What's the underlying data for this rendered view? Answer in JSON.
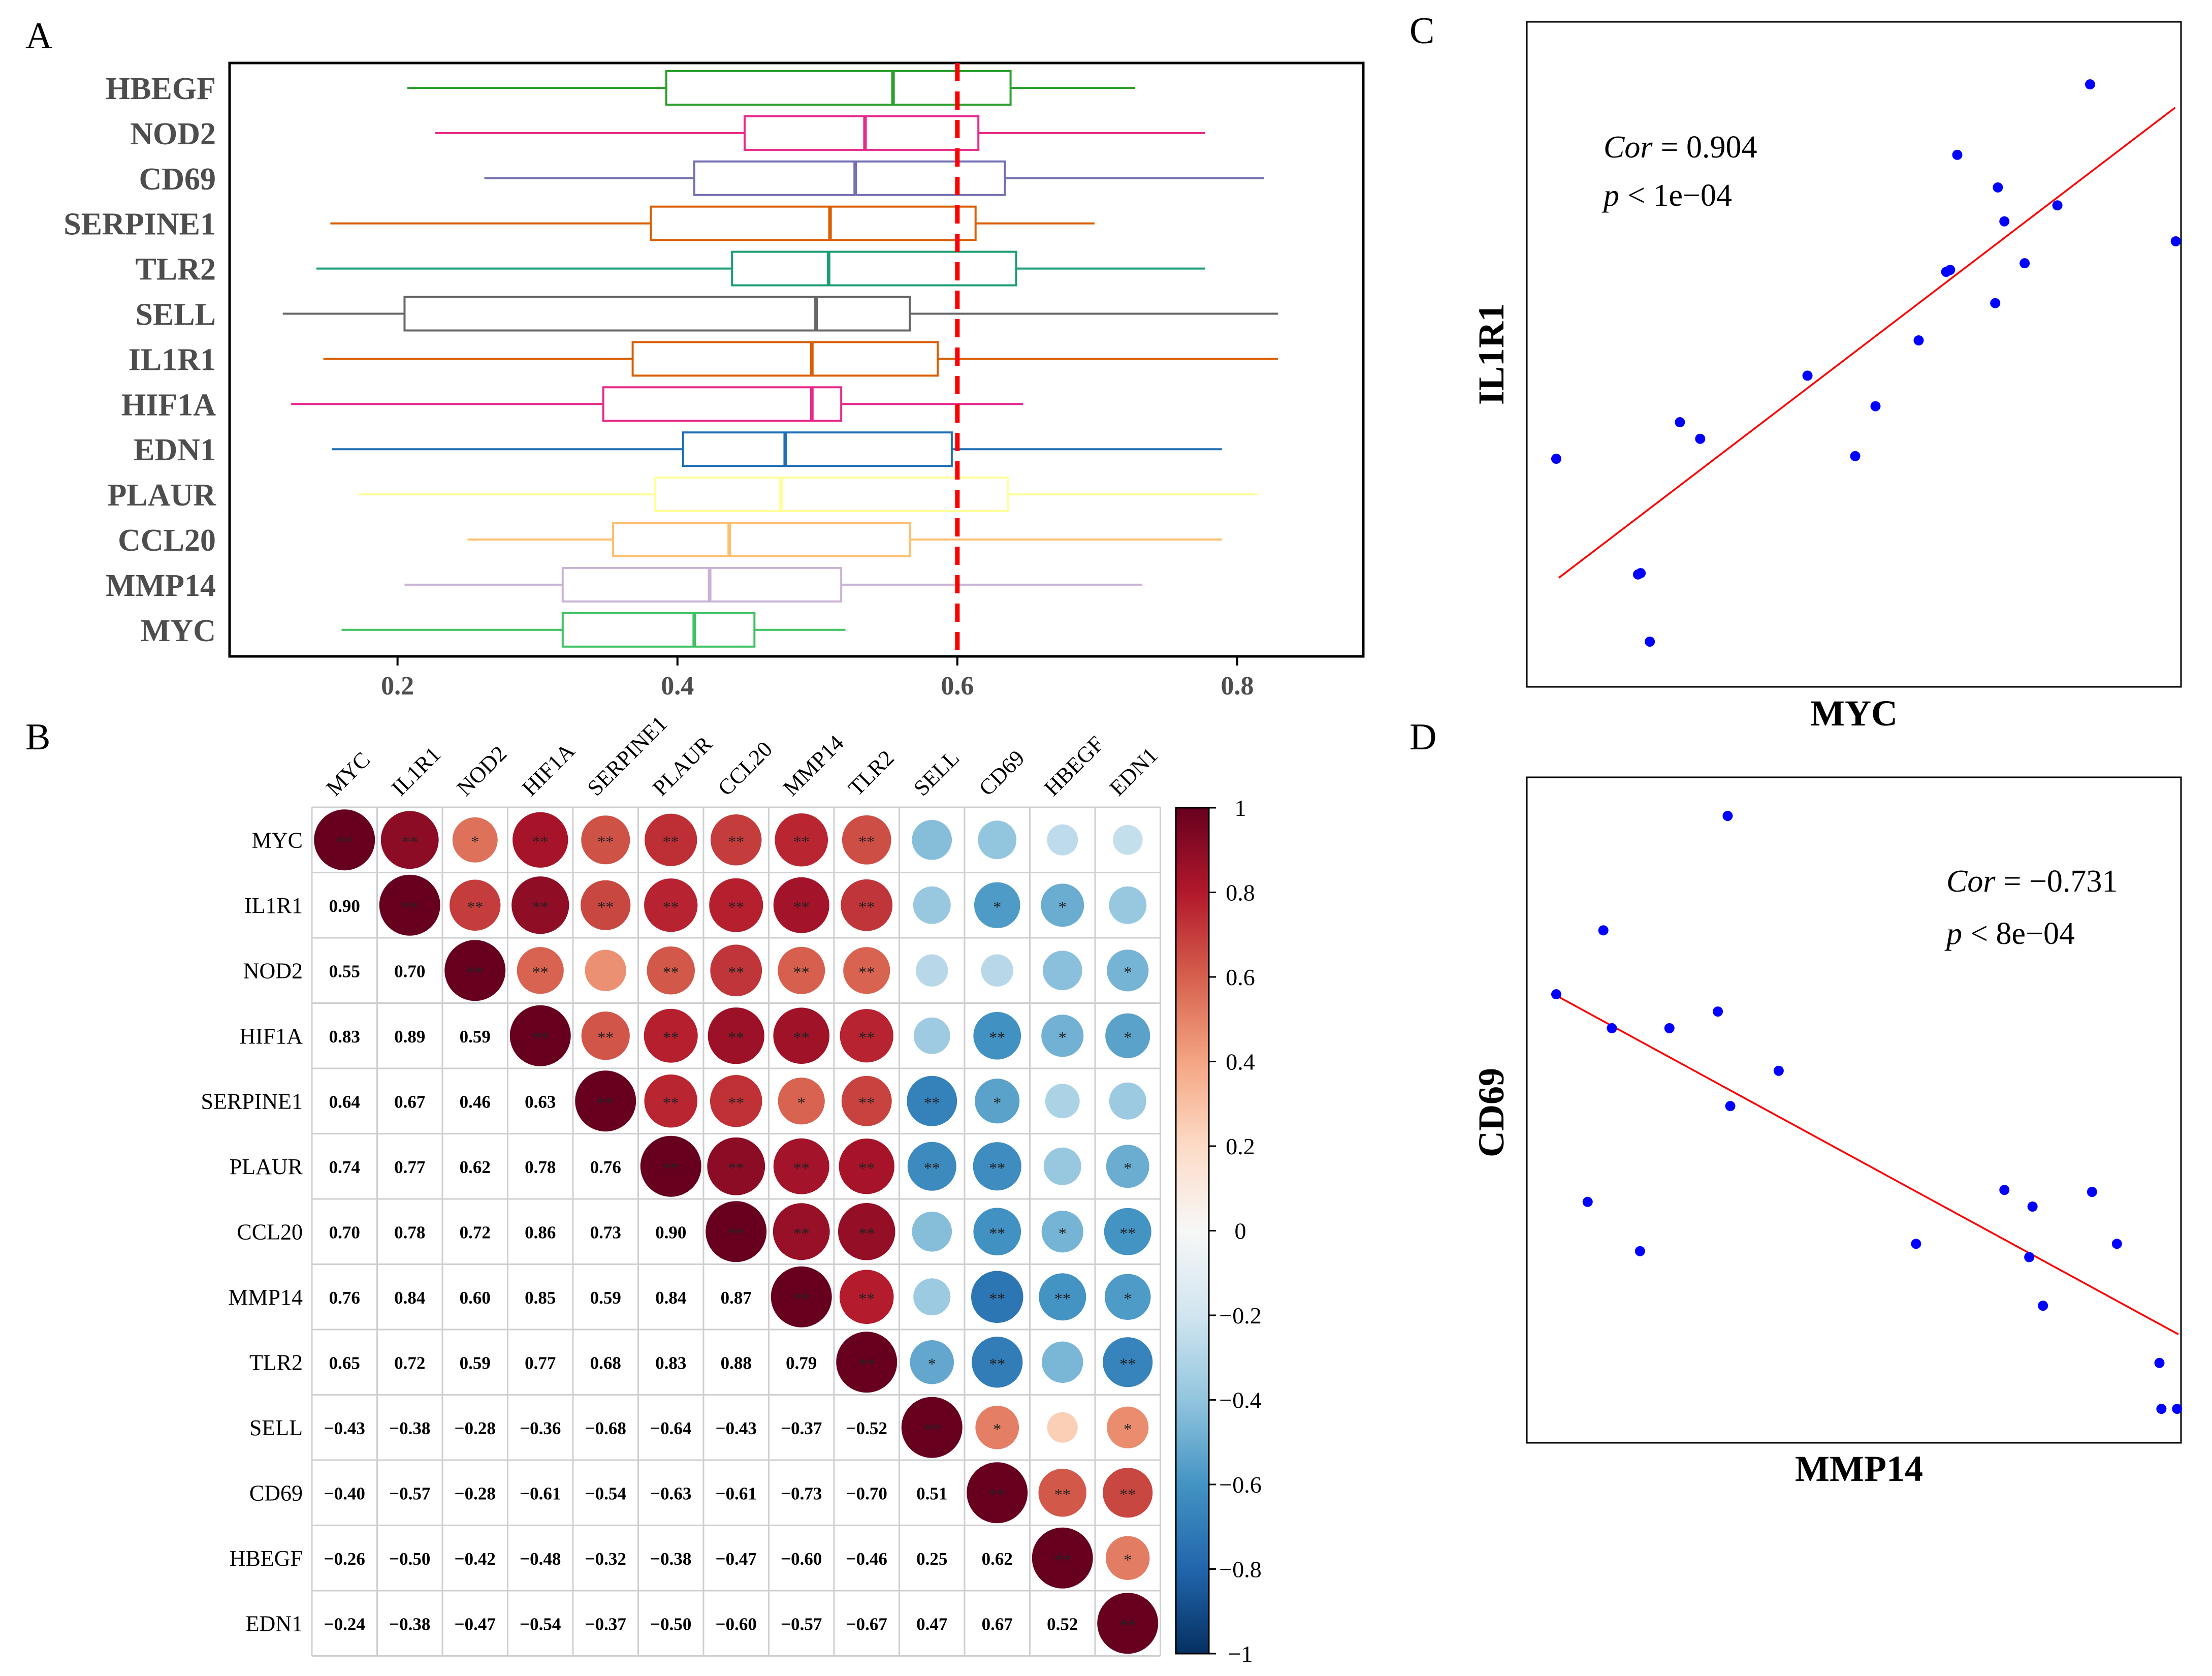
{
  "panels": {
    "A": {
      "letter": "A",
      "chart_data": {
        "type": "boxplot",
        "orientation": "horizontal",
        "categories": [
          "HBEGF",
          "NOD2",
          "CD69",
          "SERPINE1",
          "TLR2",
          "SELL",
          "IL1R1",
          "HIF1A",
          "EDN1",
          "PLAUR",
          "CCL20",
          "MMP14",
          "MYC"
        ],
        "colors": [
          "#2ca02c",
          "#e7298a",
          "#7570b3",
          "#d95f02",
          "#1b9e77",
          "#666666",
          "#d95f02",
          "#e7298a",
          "#1f6fb4",
          "#ffff99",
          "#fdbf6f",
          "#cab2d6",
          "#41c262"
        ],
        "boxes": [
          {
            "whislo": 0.207,
            "q1": 0.392,
            "med": 0.554,
            "q3": 0.638,
            "whishi": 0.727
          },
          {
            "whislo": 0.227,
            "q1": 0.448,
            "med": 0.534,
            "q3": 0.615,
            "whishi": 0.777
          },
          {
            "whislo": 0.262,
            "q1": 0.412,
            "med": 0.527,
            "q3": 0.634,
            "whishi": 0.819
          },
          {
            "whislo": 0.152,
            "q1": 0.381,
            "med": 0.509,
            "q3": 0.613,
            "whishi": 0.698
          },
          {
            "whislo": 0.142,
            "q1": 0.439,
            "med": 0.508,
            "q3": 0.642,
            "whishi": 0.777
          },
          {
            "whislo": 0.118,
            "q1": 0.205,
            "med": 0.499,
            "q3": 0.566,
            "whishi": 0.829
          },
          {
            "whislo": 0.147,
            "q1": 0.368,
            "med": 0.496,
            "q3": 0.586,
            "whishi": 0.829
          },
          {
            "whislo": 0.124,
            "q1": 0.347,
            "med": 0.496,
            "q3": 0.517,
            "whishi": 0.647
          },
          {
            "whislo": 0.153,
            "q1": 0.404,
            "med": 0.477,
            "q3": 0.596,
            "whishi": 0.789
          },
          {
            "whislo": 0.172,
            "q1": 0.384,
            "med": 0.474,
            "q3": 0.636,
            "whishi": 0.814
          },
          {
            "whislo": 0.25,
            "q1": 0.354,
            "med": 0.437,
            "q3": 0.566,
            "whishi": 0.789
          },
          {
            "whislo": 0.205,
            "q1": 0.318,
            "med": 0.423,
            "q3": 0.517,
            "whishi": 0.732
          },
          {
            "whislo": 0.16,
            "q1": 0.318,
            "med": 0.412,
            "q3": 0.455,
            "whishi": 0.52
          }
        ],
        "reference_line": {
          "x": 0.6,
          "color": "#ff0000",
          "style": "dashed"
        },
        "xlim": [
          0.08,
          0.89
        ],
        "xticks": [
          0.2,
          0.4,
          0.6,
          0.8
        ],
        "xtick_labels": [
          "0.2",
          "0.4",
          "0.6",
          "0.8"
        ]
      }
    },
    "B": {
      "letter": "B",
      "chart_data": {
        "type": "correlation_matrix",
        "labels": [
          "MYC",
          "IL1R1",
          "NOD2",
          "HIF1A",
          "SERPINE1",
          "PLAUR",
          "CCL20",
          "MMP14",
          "TLR2",
          "SELL",
          "CD69",
          "HBEGF",
          "EDN1"
        ],
        "lower_values": [
          [],
          [
            0.9
          ],
          [
            0.55,
            0.7
          ],
          [
            0.83,
            0.89,
            0.59
          ],
          [
            0.64,
            0.67,
            0.46,
            0.63
          ],
          [
            0.74,
            0.77,
            0.62,
            0.78,
            0.76
          ],
          [
            0.7,
            0.78,
            0.72,
            0.86,
            0.73,
            0.9
          ],
          [
            0.76,
            0.84,
            0.6,
            0.85,
            0.59,
            0.84,
            0.87
          ],
          [
            0.65,
            0.72,
            0.59,
            0.77,
            0.68,
            0.83,
            0.88,
            0.79
          ],
          [
            -0.43,
            -0.38,
            -0.28,
            -0.36,
            -0.68,
            -0.64,
            -0.43,
            -0.37,
            -0.52
          ],
          [
            -0.4,
            -0.57,
            -0.28,
            -0.61,
            -0.54,
            -0.63,
            -0.61,
            -0.73,
            -0.7,
            0.51
          ],
          [
            -0.26,
            -0.5,
            -0.42,
            -0.48,
            -0.32,
            -0.38,
            -0.47,
            -0.6,
            -0.46,
            0.25,
            0.62
          ],
          [
            -0.24,
            -0.38,
            -0.47,
            -0.54,
            -0.37,
            -0.5,
            -0.6,
            -0.57,
            -0.67,
            0.47,
            0.67,
            0.52
          ]
        ],
        "lower_labels": [
          [],
          [
            "0.90"
          ],
          [
            "0.55",
            "0.70"
          ],
          [
            "0.83",
            "0.89",
            "0.59"
          ],
          [
            "0.64",
            "0.67",
            "0.46",
            "0.63"
          ],
          [
            "0.74",
            "0.77",
            "0.62",
            "0.78",
            "0.76"
          ],
          [
            "0.70",
            "0.78",
            "0.72",
            "0.86",
            "0.73",
            "0.90"
          ],
          [
            "0.76",
            "0.84",
            "0.60",
            "0.85",
            "0.59",
            "0.84",
            "0.87"
          ],
          [
            "0.65",
            "0.72",
            "0.59",
            "0.77",
            "0.68",
            "0.83",
            "0.88",
            "0.79"
          ],
          [
            "−0.43",
            "−0.38",
            "−0.28",
            "−0.36",
            "−0.68",
            "−0.64",
            "−0.43",
            "−0.37",
            "−0.52"
          ],
          [
            "−0.40",
            "−0.57",
            "−0.28",
            "−0.61",
            "−0.54",
            "−0.63",
            "−0.61",
            "−0.73",
            "−0.70",
            "0.51"
          ],
          [
            "−0.26",
            "−0.50",
            "−0.42",
            "−0.48",
            "−0.32",
            "−0.38",
            "−0.47",
            "−0.60",
            "−0.46",
            "0.25",
            "0.62"
          ],
          [
            "−0.24",
            "−0.38",
            "−0.47",
            "−0.54",
            "−0.37",
            "−0.50",
            "−0.60",
            "−0.57",
            "−0.67",
            "0.47",
            "0.67",
            "0.52"
          ]
        ],
        "upper_significance": [
          [
            "**",
            "**",
            "*",
            "**",
            "**",
            "**",
            "**",
            "**",
            "**",
            "",
            "",
            "",
            ""
          ],
          [
            "",
            "**",
            "**",
            "**",
            "**",
            "**",
            "**",
            "**",
            "**",
            "",
            "*",
            "*",
            ""
          ],
          [
            "",
            "",
            "**",
            "**",
            "",
            "**",
            "**",
            "**",
            "**",
            "",
            "",
            "",
            "*"
          ],
          [
            "",
            "",
            "",
            "**",
            "**",
            "**",
            "**",
            "**",
            "**",
            "",
            "**",
            "*",
            "*"
          ],
          [
            "",
            "",
            "",
            "",
            "**",
            "**",
            "**",
            "*",
            "**",
            "**",
            "*",
            "",
            ""
          ],
          [
            "",
            "",
            "",
            "",
            "",
            "**",
            "**",
            "**",
            "**",
            "**",
            "**",
            "",
            "*"
          ],
          [
            "",
            "",
            "",
            "",
            "",
            "",
            "**",
            "**",
            "**",
            "",
            "**",
            "*",
            "**"
          ],
          [
            "",
            "",
            "",
            "",
            "",
            "",
            "",
            "**",
            "**",
            "",
            "**",
            "**",
            "*"
          ],
          [
            "",
            "",
            "",
            "",
            "",
            "",
            "",
            "",
            "**",
            "*",
            "**",
            "",
            "**"
          ],
          [
            "",
            "",
            "",
            "",
            "",
            "",
            "",
            "",
            "",
            "**",
            "*",
            "",
            "*"
          ],
          [
            "",
            "",
            "",
            "",
            "",
            "",
            "",
            "",
            "",
            "",
            "**",
            "**",
            "**"
          ],
          [
            "",
            "",
            "",
            "",
            "",
            "",
            "",
            "",
            "",
            "",
            "",
            "**",
            "*"
          ],
          [
            "",
            "",
            "",
            "",
            "",
            "",
            "",
            "",
            "",
            "",
            "",
            "",
            "**"
          ]
        ],
        "colorbar": {
          "range": [
            -1,
            1
          ],
          "ticks": [
            1,
            0.8,
            0.6,
            0.4,
            0.2,
            0,
            -0.2,
            -0.4,
            -0.6,
            -0.8,
            -1
          ],
          "tick_labels": [
            "1",
            "0.8",
            "0.6",
            "0.4",
            "0.2",
            "0",
            "−0.2",
            "−0.4",
            "−0.6",
            "−0.8",
            "−1"
          ],
          "colors_low_to_high": [
            "#053061",
            "#2166ac",
            "#4393c3",
            "#92c5de",
            "#d1e5f0",
            "#f7f7f7",
            "#fddbc7",
            "#f4a582",
            "#d6604d",
            "#b2182b",
            "#67001f"
          ]
        }
      }
    },
    "C": {
      "letter": "C",
      "chart_data": {
        "type": "scatter",
        "xlabel": "MYC",
        "ylabel": "IL1R1",
        "annotation_line1": "Cor = 0.904",
        "annotation_line2": "p < 1e−04",
        "cor_label": "Cor",
        "cor_value": "= 0.904",
        "p_label": "p",
        "p_value": "< 1e−04",
        "xlim": [
          0,
          100
        ],
        "ylim": [
          0,
          100
        ],
        "points": [
          {
            "x": 4.5,
            "y": 34.3
          },
          {
            "x": 17.0,
            "y": 16.9
          },
          {
            "x": 17.4,
            "y": 17.1
          },
          {
            "x": 18.8,
            "y": 6.8
          },
          {
            "x": 23.4,
            "y": 39.8
          },
          {
            "x": 26.5,
            "y": 37.3
          },
          {
            "x": 42.9,
            "y": 46.8
          },
          {
            "x": 50.2,
            "y": 34.7
          },
          {
            "x": 53.3,
            "y": 42.2
          },
          {
            "x": 59.9,
            "y": 52.1
          },
          {
            "x": 64.1,
            "y": 62.4
          },
          {
            "x": 64.7,
            "y": 62.7
          },
          {
            "x": 65.8,
            "y": 80.0
          },
          {
            "x": 71.6,
            "y": 57.7
          },
          {
            "x": 72.0,
            "y": 75.1
          },
          {
            "x": 73.0,
            "y": 70.0
          },
          {
            "x": 76.1,
            "y": 63.7
          },
          {
            "x": 81.1,
            "y": 72.4
          },
          {
            "x": 86.1,
            "y": 90.6
          },
          {
            "x": 99.2,
            "y": 67.0
          }
        ],
        "fit_line": [
          {
            "x": 4.9,
            "y": 16.4
          },
          {
            "x": 99.1,
            "y": 87.1
          }
        ],
        "point_color": "#0000ff",
        "line_color": "#ff0000"
      }
    },
    "D": {
      "letter": "D",
      "chart_data": {
        "type": "scatter",
        "xlabel": "MMP14",
        "ylabel": "CD69",
        "annotation_line1": "Cor = −0.731",
        "annotation_line2": "p < 8e−04",
        "cor_label": "Cor",
        "cor_value": "= −0.731",
        "p_label": "p",
        "p_value": "< 8e−04",
        "xlim": [
          0,
          100
        ],
        "ylim": [
          0,
          100
        ],
        "points": [
          {
            "x": 4.5,
            "y": 67.4
          },
          {
            "x": 9.3,
            "y": 36.2
          },
          {
            "x": 11.7,
            "y": 77.0
          },
          {
            "x": 13.0,
            "y": 62.3
          },
          {
            "x": 17.3,
            "y": 28.8
          },
          {
            "x": 21.8,
            "y": 62.3
          },
          {
            "x": 29.2,
            "y": 64.8
          },
          {
            "x": 30.7,
            "y": 94.2
          },
          {
            "x": 31.1,
            "y": 50.6
          },
          {
            "x": 38.5,
            "y": 55.9
          },
          {
            "x": 59.5,
            "y": 29.9
          },
          {
            "x": 73.0,
            "y": 38.0
          },
          {
            "x": 76.8,
            "y": 27.9
          },
          {
            "x": 77.3,
            "y": 35.5
          },
          {
            "x": 78.9,
            "y": 20.6
          },
          {
            "x": 86.4,
            "y": 37.7
          },
          {
            "x": 90.2,
            "y": 29.9
          },
          {
            "x": 96.7,
            "y": 12.0
          },
          {
            "x": 97.0,
            "y": 5.1
          },
          {
            "x": 99.4,
            "y": 5.1
          }
        ],
        "fit_line": [
          {
            "x": 4.7,
            "y": 67.1
          },
          {
            "x": 99.6,
            "y": 16.3
          }
        ],
        "point_color": "#0000ff",
        "line_color": "#ff0000"
      }
    }
  }
}
